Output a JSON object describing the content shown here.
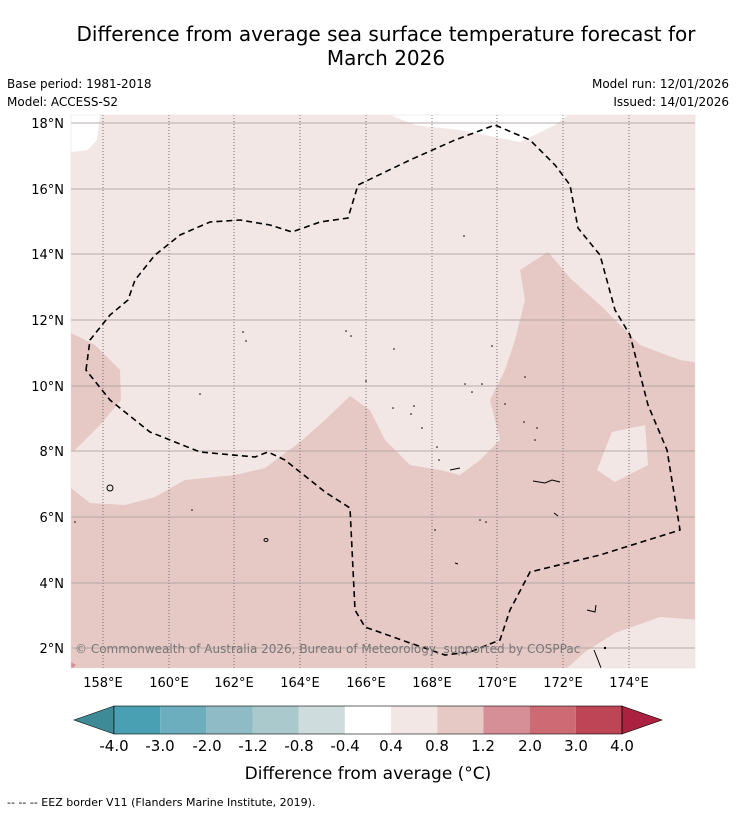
{
  "title_line1": "Difference from average sea surface temperature forecast for",
  "title_line2": "March 2026",
  "meta_left": {
    "base_period": "Base period: 1981-2018",
    "model": "Model: ACCESS-S2"
  },
  "meta_right": {
    "model_run": "Model run: 12/01/2026",
    "issued": "Issued: 14/01/2026"
  },
  "map": {
    "lat_labels": [
      "18°N",
      "16°N",
      "14°N",
      "12°N",
      "10°N",
      "8°N",
      "6°N",
      "4°N",
      "2°N"
    ],
    "lon_labels": [
      "158°E",
      "160°E",
      "162°E",
      "164°E",
      "166°E",
      "168°E",
      "170°E",
      "172°E",
      "174°E"
    ],
    "copyright": "© Commonwealth of Australia 2026, Bureau of Meteorology, supported by COSPPac",
    "fill_colors": {
      "bin_0_4_0_8": "#f3e7e6",
      "bin_0_8_1_2": "#e6c8c4"
    }
  },
  "colorbar": {
    "tick_labels": [
      "-4.0",
      "-3.0",
      "-2.0",
      "-1.2",
      "-0.8",
      "-0.4",
      "0.4",
      "0.8",
      "1.2",
      "2.0",
      "3.0",
      "4.0"
    ],
    "colors": [
      "#3f8a97",
      "#49a0b2",
      "#6caebd",
      "#8fbbc6",
      "#a9c9cd",
      "#cfdcde",
      "#ffffff",
      "#f3e7e6",
      "#e6c8c4",
      "#d68f96",
      "#cd6a74",
      "#bd4555",
      "#ac2040"
    ],
    "label": "Difference from average (°C)"
  },
  "footer": "--  --  -- EEZ border V11 (Flanders Marine Institute, 2019)."
}
